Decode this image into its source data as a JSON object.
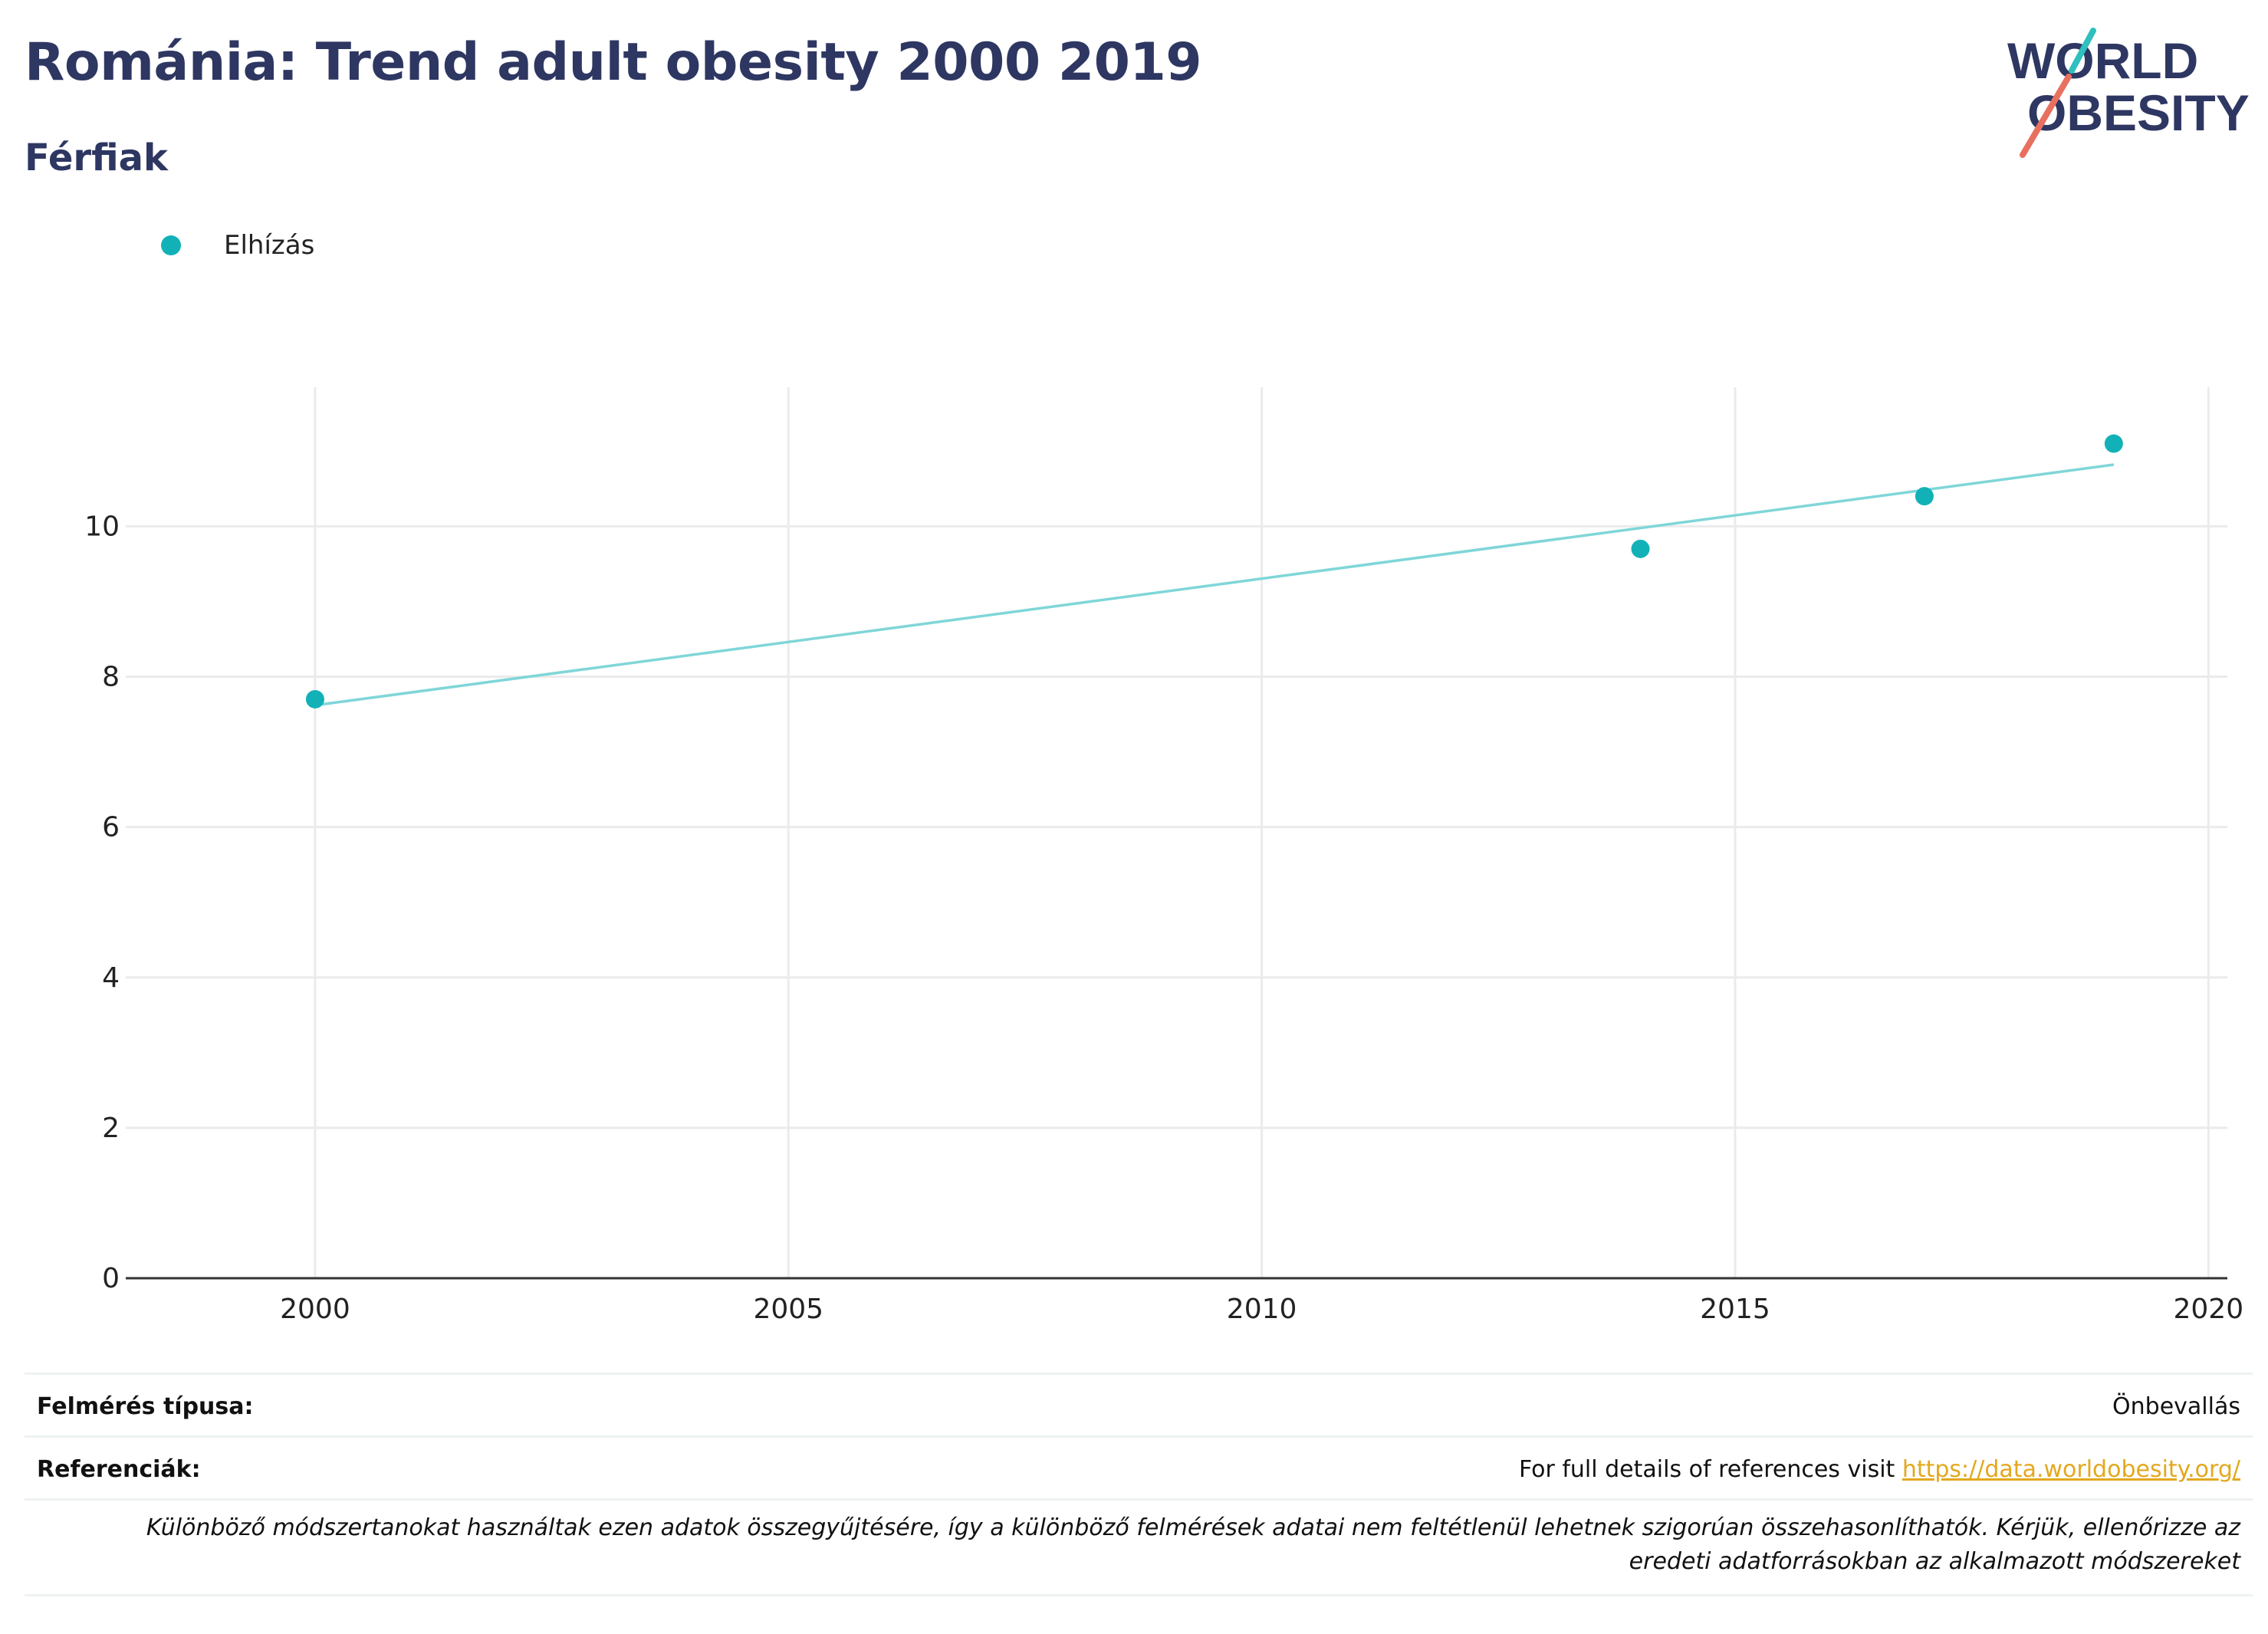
{
  "header": {
    "title": "Románia: Trend adult obesity 2000 2019",
    "subtitle": "Férfiak"
  },
  "logo": {
    "line1": "WORLD",
    "line2": "OBESITY",
    "accent_teal": "#2fbfbe",
    "accent_red": "#e8705f"
  },
  "legend": {
    "label": "Elhízás",
    "color": "#12b1b8"
  },
  "chart_data": {
    "type": "scatter",
    "series": [
      {
        "name": "Elhízás",
        "x": [
          2000,
          2014,
          2017,
          2019
        ],
        "y": [
          7.7,
          9.7,
          10.4,
          11.1
        ],
        "color": "#12b1b8"
      }
    ],
    "trendline": {
      "x": [
        2000,
        2019
      ],
      "y": [
        7.62,
        10.82
      ],
      "color": "#7fd6d8"
    },
    "xlim": [
      1998,
      2020.2
    ],
    "ylim": [
      0,
      11.85
    ],
    "xticks": [
      2000,
      2005,
      2010,
      2015,
      2020
    ],
    "yticks": [
      0,
      2,
      4,
      6,
      8,
      10
    ],
    "grid": true,
    "legend_position": "top-left"
  },
  "info": {
    "survey_key": "Felmérés típusa:",
    "survey_value": "Önbevallás",
    "refs_key": "Referenciák:",
    "refs_text": "For full details of references visit ",
    "refs_link": "https://data.worldobesity.org/",
    "note": "Különböző módszertanokat használtak ezen adatok összegyűjtésére, így a különböző felmérések adatai nem feltétlenül lehetnek szigorúan összehasonlíthatók. Kérjük, ellenőrizze az eredeti adatforrásokban az alkalmazott módszereket"
  }
}
